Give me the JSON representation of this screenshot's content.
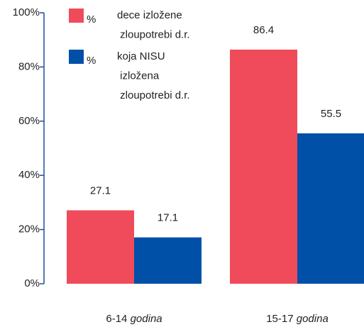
{
  "chart_data": {
    "type": "bar",
    "categories": [
      "6-14 godina",
      "15-17 godina"
    ],
    "series": [
      {
        "name": "dece izložene zloupotrebi d.r.",
        "unit": "%",
        "color": "#f04b5a",
        "values": [
          27.1,
          86.4
        ]
      },
      {
        "name": "koja NISU izložena zloupotrebi d.r.",
        "unit": "%",
        "color": "#0050a8",
        "values": [
          17.1,
          55.5
        ]
      }
    ],
    "ylim": [
      0,
      100
    ],
    "yticks": [
      {
        "value": 0,
        "label": "0%"
      },
      {
        "value": 20,
        "label": "20%"
      },
      {
        "value": 40,
        "label": "40%"
      },
      {
        "value": 60,
        "label": "60%"
      },
      {
        "value": 80,
        "label": "80%"
      },
      {
        "value": 100,
        "label": "100%"
      }
    ],
    "grid": false
  }
}
